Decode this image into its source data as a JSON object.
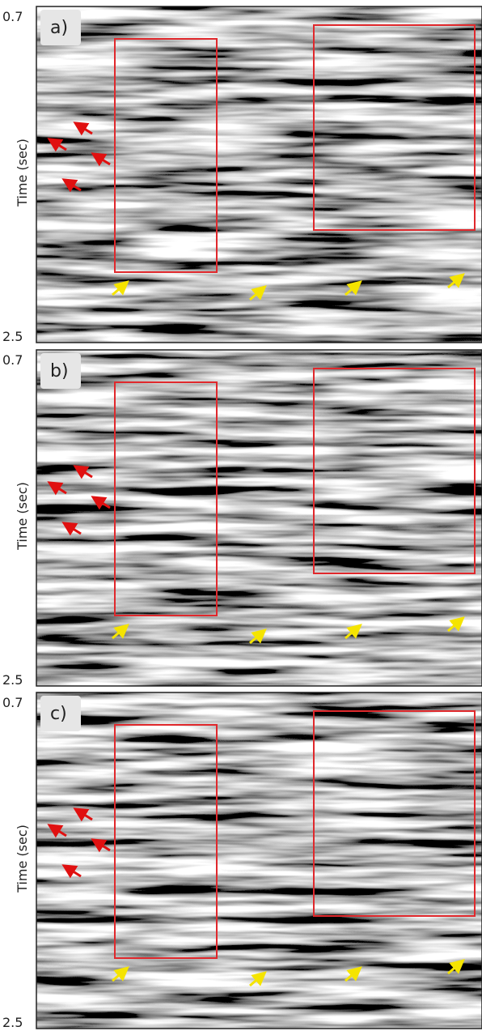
{
  "panels": [
    {
      "label": "a)",
      "y_label": "Time (sec)",
      "y_top": "0.7",
      "y_bottom": "2.5"
    },
    {
      "label": "b)",
      "y_label": "Time (sec)",
      "y_top": "0.7",
      "y_bottom": "2.5"
    },
    {
      "label": "c)",
      "y_label": "Time (sec)",
      "y_top": "0.7",
      "y_bottom": "2.5"
    }
  ]
}
